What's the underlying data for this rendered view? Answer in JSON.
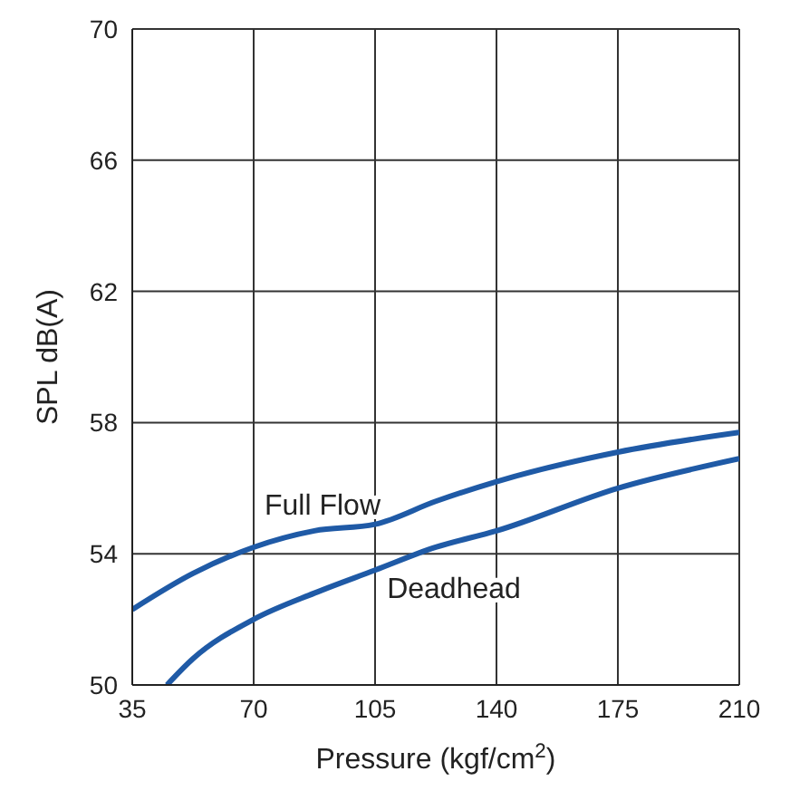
{
  "chart_data": {
    "type": "line",
    "xlabel": "Pressure  (kgf/cm$^{2}$)",
    "ylabel": "SPL  dB(A)",
    "xlim": [
      35,
      210
    ],
    "xticks": [
      35,
      70,
      105,
      140,
      175,
      210
    ],
    "ylim": [
      50,
      70
    ],
    "yticks": [
      50,
      54,
      58,
      62,
      66,
      70
    ],
    "grid": true,
    "series": [
      {
        "name": "Full Flow",
        "color": "#1f5aa6",
        "x": [
          35,
          52.5,
          70,
          87.5,
          105,
          122.5,
          140,
          175,
          210
        ],
        "values": [
          52.3,
          53.4,
          54.2,
          54.7,
          54.9,
          55.6,
          56.2,
          57.1,
          57.7
        ]
      },
      {
        "name": "Deadhead",
        "color": "#1f5aa6",
        "x": [
          45,
          52.5,
          70,
          87.5,
          105,
          122.5,
          140,
          175,
          210
        ],
        "values": [
          50,
          50.8,
          52.0,
          52.8,
          53.5,
          54.2,
          54.7,
          56.0,
          56.9
        ]
      }
    ]
  }
}
